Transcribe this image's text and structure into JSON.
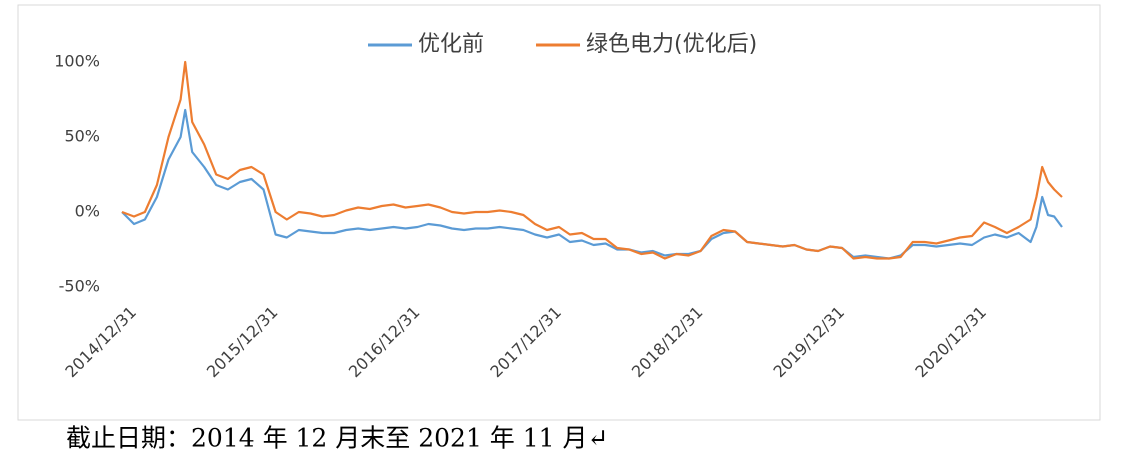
{
  "chart_data": {
    "type": "line",
    "caption": "截止日期：2014 年 12 月末至 2021 年 11 月↵",
    "x": [
      "2014/12/31",
      "2015/01/31",
      "2015/02/28",
      "2015/03/31",
      "2015/04/30",
      "2015/05/31",
      "2015/06/12",
      "2015/06/30",
      "2015/07/31",
      "2015/08/31",
      "2015/09/30",
      "2015/10/31",
      "2015/11/30",
      "2015/12/31",
      "2016/01/31",
      "2016/02/29",
      "2016/03/31",
      "2016/04/30",
      "2016/05/31",
      "2016/06/30",
      "2016/07/31",
      "2016/08/31",
      "2016/09/30",
      "2016/10/31",
      "2016/11/30",
      "2016/12/31",
      "2017/01/31",
      "2017/02/28",
      "2017/03/31",
      "2017/04/30",
      "2017/05/31",
      "2017/06/30",
      "2017/07/31",
      "2017/08/31",
      "2017/09/30",
      "2017/10/31",
      "2017/11/30",
      "2017/12/31",
      "2018/01/31",
      "2018/02/28",
      "2018/03/31",
      "2018/04/30",
      "2018/05/31",
      "2018/06/30",
      "2018/07/31",
      "2018/08/31",
      "2018/09/30",
      "2018/10/31",
      "2018/11/30",
      "2018/12/31",
      "2019/01/31",
      "2019/02/28",
      "2019/03/31",
      "2019/04/30",
      "2019/05/31",
      "2019/06/30",
      "2019/07/31",
      "2019/08/31",
      "2019/09/30",
      "2019/10/31",
      "2019/11/30",
      "2019/12/31",
      "2020/01/31",
      "2020/02/29",
      "2020/03/31",
      "2020/04/30",
      "2020/05/31",
      "2020/06/30",
      "2020/07/31",
      "2020/08/31",
      "2020/09/30",
      "2020/10/31",
      "2020/11/30",
      "2020/12/31",
      "2021/01/31",
      "2021/02/28",
      "2021/03/31",
      "2021/04/30",
      "2021/05/31",
      "2021/06/15",
      "2021/06/30",
      "2021/07/15",
      "2021/07/31",
      "2021/08/20"
    ],
    "series": [
      {
        "name": "优化前",
        "color": "#5B9BD5",
        "values": [
          0,
          -8,
          -5,
          10,
          35,
          50,
          68,
          40,
          30,
          18,
          15,
          20,
          22,
          15,
          -15,
          -17,
          -12,
          -13,
          -14,
          -14,
          -12,
          -11,
          -12,
          -11,
          -10,
          -11,
          -10,
          -8,
          -9,
          -11,
          -12,
          -11,
          -11,
          -10,
          -11,
          -12,
          -15,
          -17,
          -15,
          -20,
          -19,
          -22,
          -21,
          -25,
          -25,
          -27,
          -26,
          -29,
          -28,
          -28,
          -26,
          -18,
          -14,
          -13,
          -20,
          -21,
          -22,
          -23,
          -22,
          -25,
          -26,
          -23,
          -24,
          -30,
          -29,
          -30,
          -31,
          -29,
          -22,
          -22,
          -23,
          -22,
          -21,
          -22,
          -17,
          -15,
          -17,
          -14,
          -20,
          -10,
          10,
          -2,
          -3,
          -10
        ]
      },
      {
        "name": "绿色电力(优化后)",
        "color": "#ED7D31",
        "values": [
          0,
          -3,
          0,
          18,
          50,
          75,
          100,
          60,
          45,
          25,
          22,
          28,
          30,
          25,
          0,
          -5,
          0,
          -1,
          -3,
          -2,
          1,
          3,
          2,
          4,
          5,
          3,
          4,
          5,
          3,
          0,
          -1,
          0,
          0,
          1,
          0,
          -2,
          -8,
          -12,
          -10,
          -15,
          -14,
          -18,
          -18,
          -24,
          -25,
          -28,
          -27,
          -31,
          -28,
          -29,
          -26,
          -16,
          -12,
          -13,
          -20,
          -21,
          -22,
          -23,
          -22,
          -25,
          -26,
          -23,
          -24,
          -31,
          -30,
          -31,
          -31,
          -30,
          -20,
          -20,
          -21,
          -19,
          -17,
          -16,
          -7,
          -10,
          -14,
          -10,
          -5,
          10,
          30,
          20,
          15,
          10
        ]
      }
    ],
    "xlim": [
      "2014/12/31",
      "2021/08/20"
    ],
    "xticks": [
      "2014/12/31",
      "2015/12/31",
      "2016/12/31",
      "2017/12/31",
      "2018/12/31",
      "2019/12/31",
      "2020/12/31"
    ],
    "ylim": [
      -60,
      110
    ],
    "yticks": [
      {
        "value": 100,
        "label": "100%"
      },
      {
        "value": 50,
        "label": "50%"
      },
      {
        "value": 0,
        "label": "0%"
      },
      {
        "value": -50,
        "label": "-50%"
      }
    ],
    "legend": "top"
  }
}
